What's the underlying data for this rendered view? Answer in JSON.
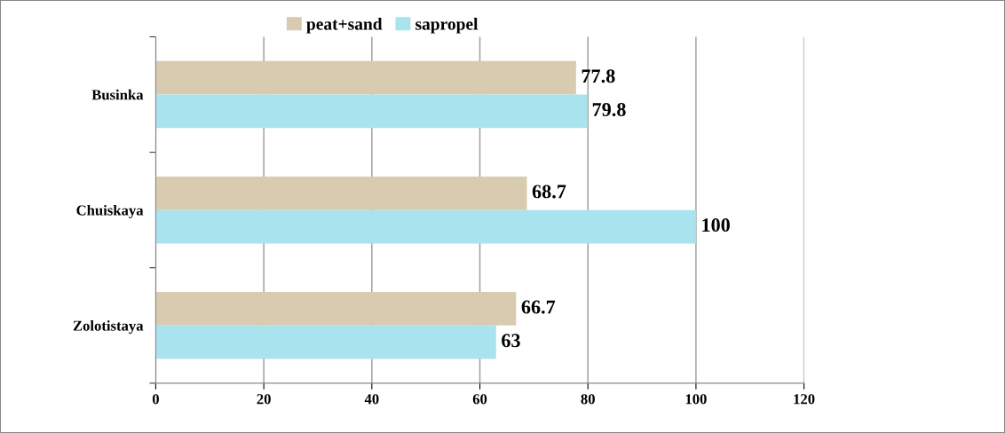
{
  "chart_data": {
    "type": "bar",
    "orientation": "horizontal",
    "categories": [
      "Businka",
      "Chuiskaya",
      "Zolotistaya"
    ],
    "series": [
      {
        "name": "peat+sand",
        "color": "#d8cbb0",
        "values": [
          77.8,
          68.7,
          66.7
        ]
      },
      {
        "name": "sapropel",
        "color": "#a9e3ee",
        "values": [
          79.8,
          100,
          63
        ]
      }
    ],
    "xlim": [
      0,
      120
    ],
    "xticks": [
      0,
      20,
      40,
      60,
      80,
      100,
      120
    ],
    "grid": "x",
    "legend": "top",
    "data_labels": true
  }
}
